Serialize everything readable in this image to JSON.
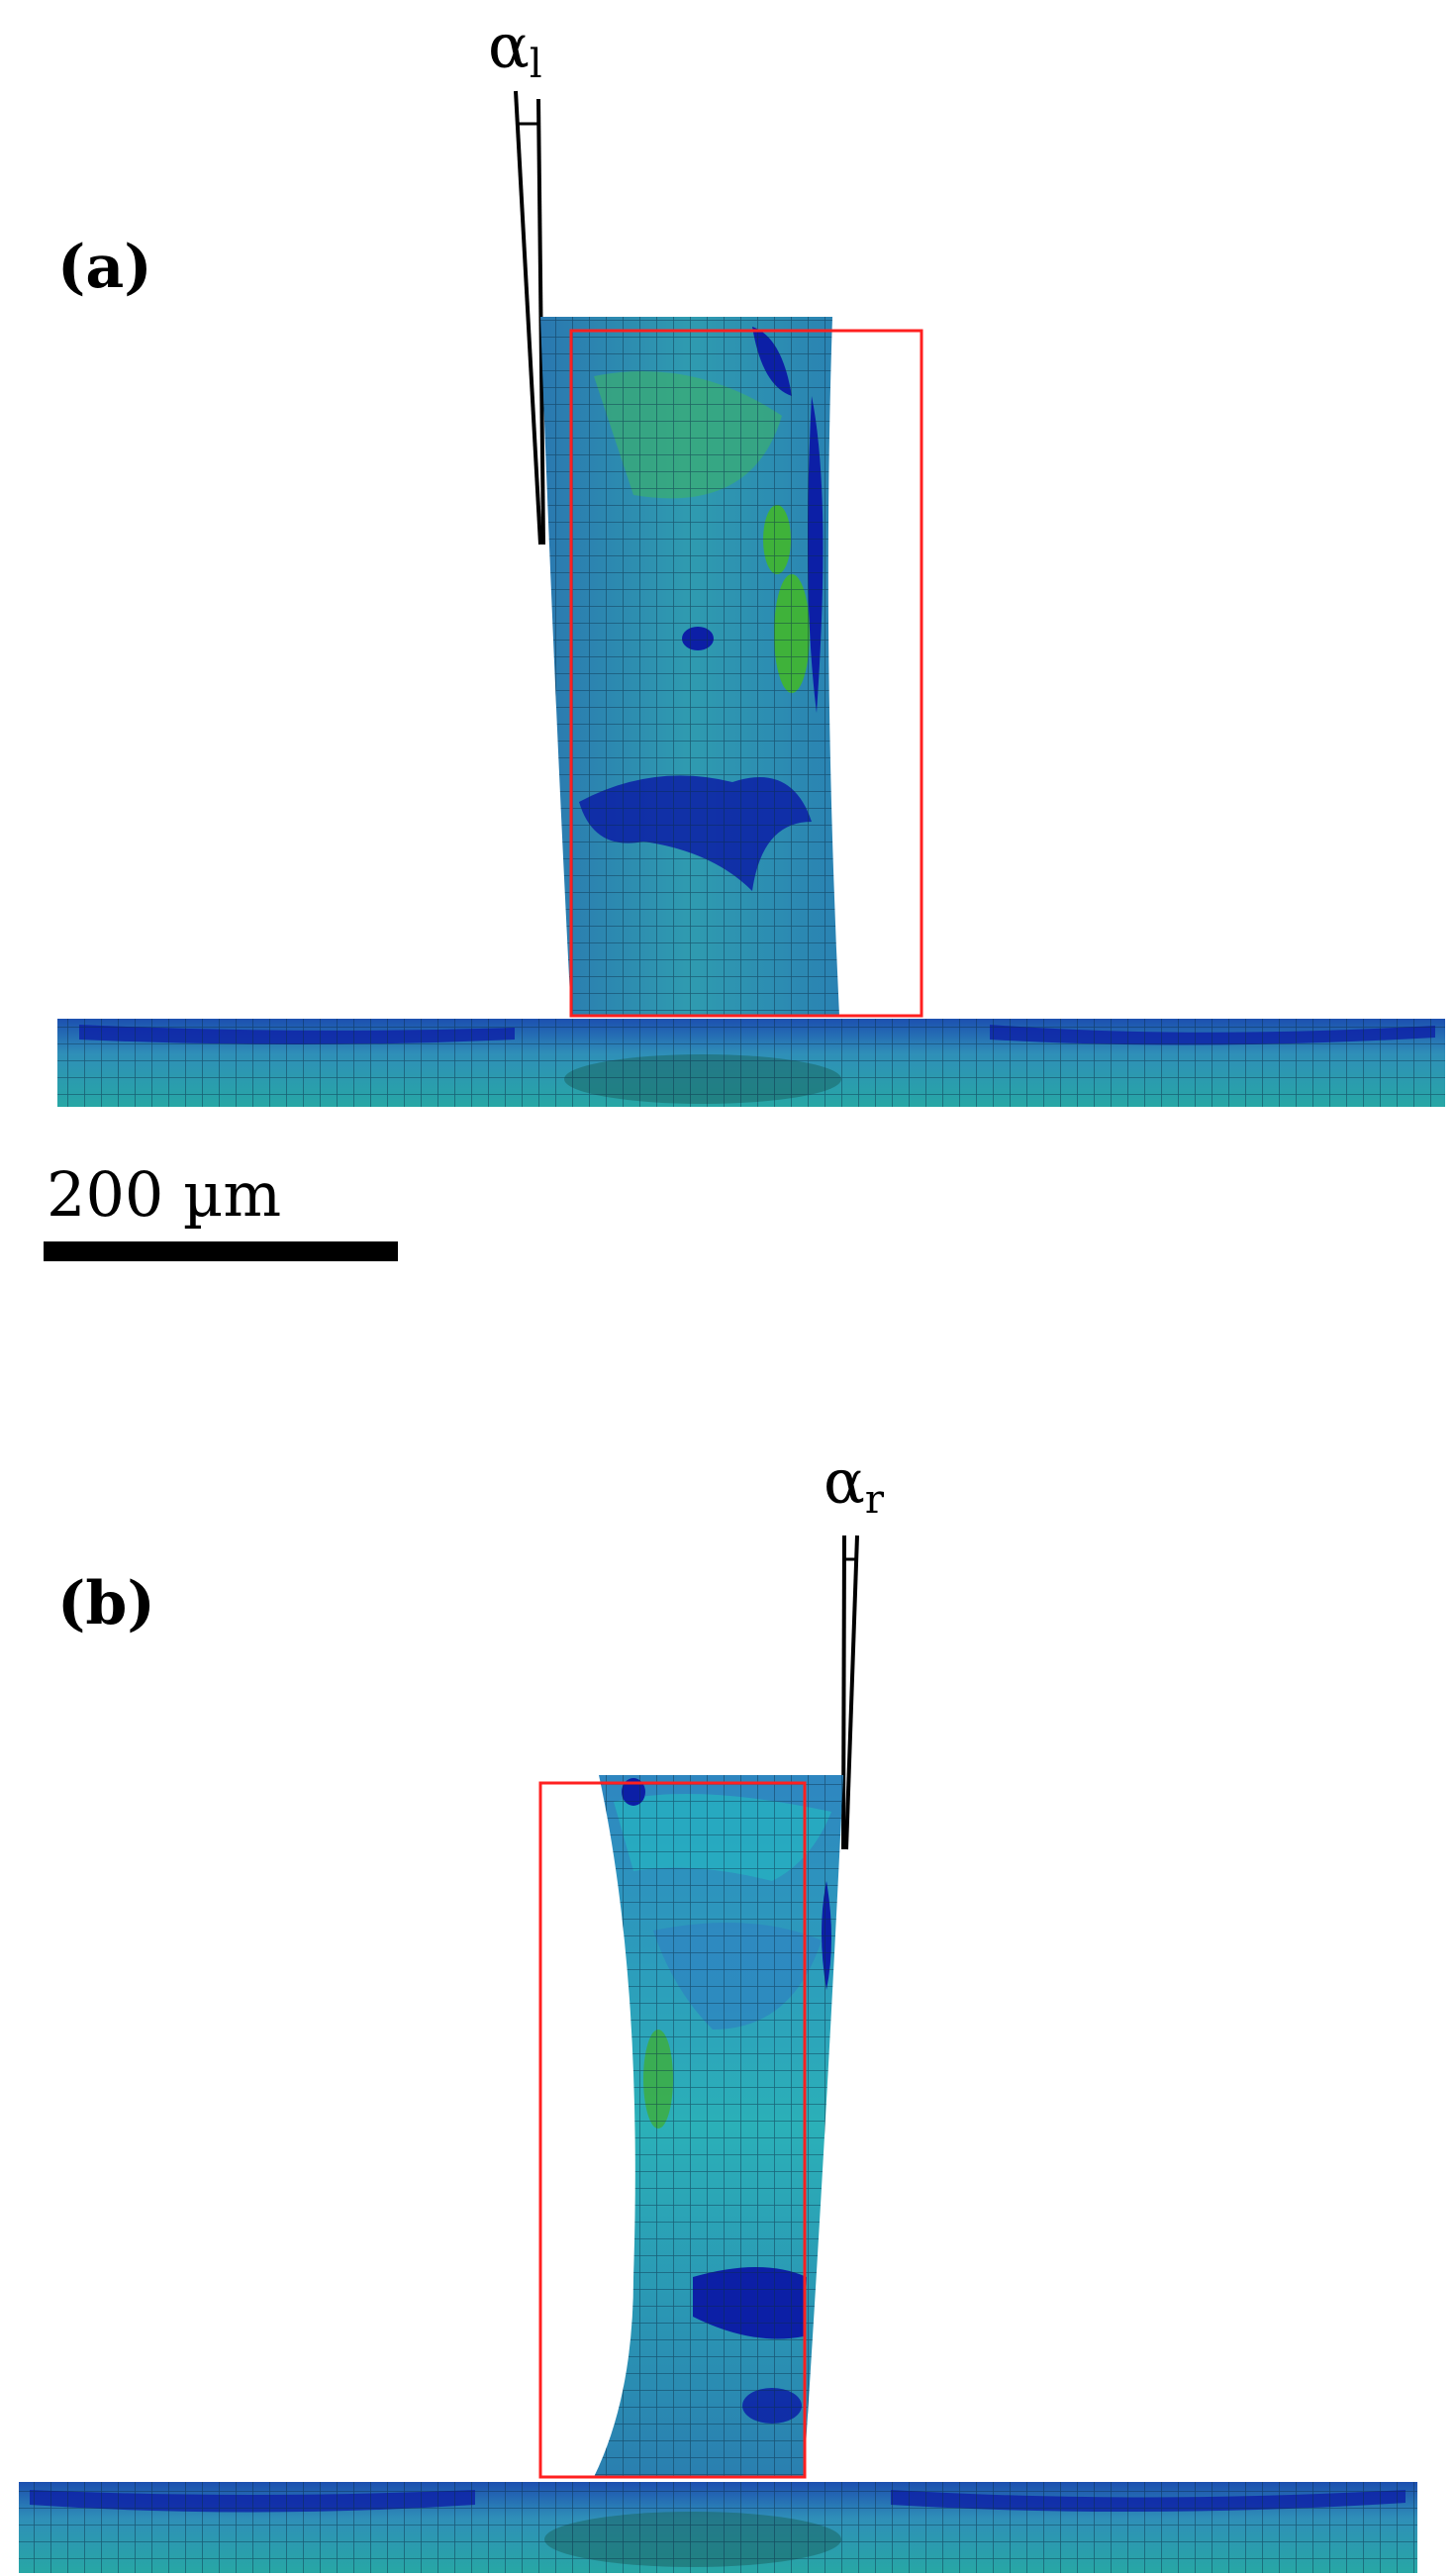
{
  "panels": [
    {
      "label": "(a)",
      "angle_symbol": "α",
      "angle_subscript": "l"
    },
    {
      "label": "(b)",
      "angle_symbol": "α",
      "angle_subscript": "r"
    }
  ],
  "scale_bar": {
    "label": "200 µm"
  },
  "colors": {
    "reference_box": "#ff2020",
    "mesh_base": "#2f86b4",
    "mesh_low": "#0c1fa6",
    "mesh_mid": "#25b0b0",
    "mesh_high": "#3fae3a",
    "mesh_lines": "#0b2b45"
  }
}
